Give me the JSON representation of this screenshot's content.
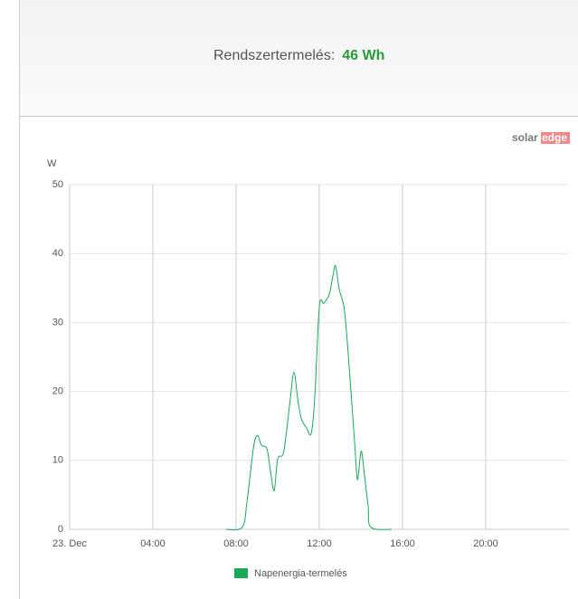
{
  "header": {
    "label": "Rendszertermelés:",
    "value": "46 Wh"
  },
  "logo": [
    "solar",
    "edge"
  ],
  "chart_data": {
    "type": "line",
    "y_label": "W",
    "xlim": [
      0,
      24
    ],
    "xticks": [
      {
        "value": 0,
        "label": "23. Dec"
      },
      {
        "value": 4,
        "label": "04:00"
      },
      {
        "value": 8,
        "label": "08:00"
      },
      {
        "value": 12,
        "label": "12:00"
      },
      {
        "value": 16,
        "label": "16:00"
      },
      {
        "value": 20,
        "label": "20:00"
      }
    ],
    "ylim": [
      0,
      50
    ],
    "yticks": [
      0,
      10,
      20,
      30,
      40,
      50
    ],
    "grid": true,
    "x": [
      7.52,
      8.3,
      8.52,
      8.7,
      8.87,
      9.04,
      9.22,
      9.48,
      9.65,
      9.83,
      10.0,
      10.26,
      10.43,
      10.61,
      10.78,
      10.96,
      11.13,
      11.39,
      11.61,
      11.78,
      12.0,
      12.22,
      12.48,
      12.65,
      12.78,
      12.96,
      13.22,
      13.48,
      13.7,
      13.83,
      13.96,
      14.04,
      14.17,
      14.35,
      14.48,
      15.48
    ],
    "series": [
      {
        "name": "Napenergia-termelés",
        "color": "#1aaa55",
        "values": [
          0,
          0.3,
          3.9,
          8.5,
          12.5,
          13.6,
          12.2,
          11.7,
          8.5,
          5.6,
          10.2,
          10.9,
          14.4,
          19,
          22.8,
          19,
          16.1,
          14.7,
          13.9,
          19,
          32.2,
          32.8,
          34.1,
          36.7,
          38.2,
          34.8,
          31.5,
          21.7,
          12.5,
          7.2,
          10.4,
          11.2,
          7.9,
          3.3,
          0.3,
          0
        ]
      }
    ]
  }
}
